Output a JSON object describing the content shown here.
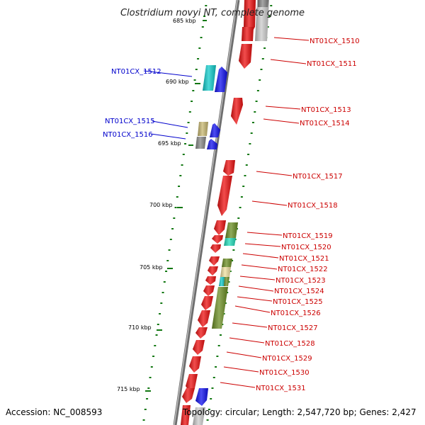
{
  "title": "Clostridium novyi NT, complete genome",
  "footer": {
    "accession": "Accession: NC_008593",
    "topology": "Topology: circular; Length: 2,547,720 bp; Genes: 2,427"
  },
  "colors": {
    "forward_label": "#0000cc",
    "reverse_label": "#cc0000",
    "red": "#ee1111",
    "blue": "#1111ee",
    "cyan": "#11cccc",
    "olive": "#6b8e23",
    "khaki": "#c8b870",
    "lightyellow": "#f0e0a0",
    "gray": "#888888",
    "lightgray": "#cccccc",
    "teal": "#22ddbb",
    "green_tick": "#117711",
    "backbone": "#888888"
  },
  "ruler": [
    {
      "label": "685 kbp",
      "kbp": 685
    },
    {
      "label": "690 kbp",
      "kbp": 690
    },
    {
      "label": "695 kbp",
      "kbp": 695
    },
    {
      "label": "700 kbp",
      "kbp": 700
    },
    {
      "label": "705 kbp",
      "kbp": 705
    },
    {
      "label": "710 kbp",
      "kbp": 710
    },
    {
      "label": "715 kbp",
      "kbp": 715
    }
  ],
  "labels_forward": [
    {
      "text": "NT01CX_1512"
    },
    {
      "text": "NT01CX_1515"
    },
    {
      "text": "NT01CX_1516"
    }
  ],
  "labels_reverse": [
    {
      "text": "NT01CX_1510"
    },
    {
      "text": "NT01CX_1511"
    },
    {
      "text": "NT01CX_1513"
    },
    {
      "text": "NT01CX_1514"
    },
    {
      "text": "NT01CX_1517"
    },
    {
      "text": "NT01CX_1518"
    },
    {
      "text": "NT01CX_1519"
    },
    {
      "text": "NT01CX_1520"
    },
    {
      "text": "NT01CX_1521"
    },
    {
      "text": "NT01CX_1522"
    },
    {
      "text": "NT01CX_1523"
    },
    {
      "text": "NT01CX_1524"
    },
    {
      "text": "NT01CX_1525"
    },
    {
      "text": "NT01CX_1526"
    },
    {
      "text": "NT01CX_1527"
    },
    {
      "text": "NT01CX_1528"
    },
    {
      "text": "NT01CX_1529"
    },
    {
      "text": "NT01CX_1530"
    },
    {
      "text": "NT01CX_1531"
    }
  ],
  "genes": [
    {
      "color": "red"
    },
    {
      "color": "lightgray"
    },
    {
      "color": "gray"
    },
    {
      "color": "red"
    },
    {
      "color": "red"
    },
    {
      "color": "cyan"
    },
    {
      "color": "blue"
    },
    {
      "color": "red"
    },
    {
      "color": "khaki"
    },
    {
      "color": "gray"
    },
    {
      "color": "blue"
    },
    {
      "color": "blue"
    },
    {
      "color": "red"
    },
    {
      "color": "red"
    },
    {
      "color": "red"
    },
    {
      "color": "red"
    },
    {
      "color": "red"
    },
    {
      "color": "olive"
    },
    {
      "color": "teal"
    },
    {
      "color": "red"
    },
    {
      "color": "red"
    },
    {
      "color": "olive"
    },
    {
      "color": "lightyellow"
    },
    {
      "color": "cyan"
    },
    {
      "color": "olive"
    },
    {
      "color": "olive"
    },
    {
      "color": "red"
    },
    {
      "color": "red"
    },
    {
      "color": "red"
    },
    {
      "color": "red"
    },
    {
      "color": "red"
    },
    {
      "color": "red"
    },
    {
      "color": "red"
    },
    {
      "color": "red"
    },
    {
      "color": "red"
    },
    {
      "color": "blue"
    },
    {
      "color": "red"
    }
  ]
}
